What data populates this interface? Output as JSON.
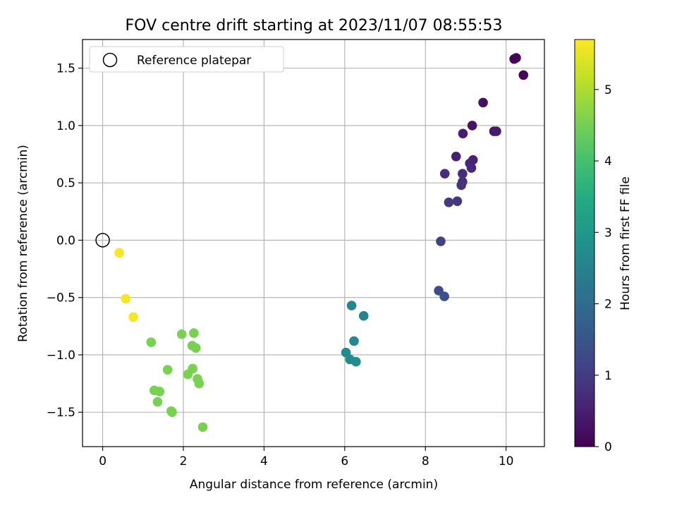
{
  "chart_data": {
    "type": "scatter",
    "title": "FOV centre drift starting at 2023/11/07 08:55:53",
    "xlabel": "Angular distance from reference (arcmin)",
    "ylabel": "Rotation from reference (arcmin)",
    "xlim": [
      -0.5,
      10.95
    ],
    "ylim": [
      -1.8,
      1.75
    ],
    "xticks": [
      0,
      2,
      4,
      6,
      8,
      10
    ],
    "xtick_labels": [
      "0",
      "2",
      "4",
      "6",
      "8",
      "10"
    ],
    "yticks": [
      -1.5,
      -1.0,
      -0.5,
      0.0,
      0.5,
      1.0,
      1.5
    ],
    "ytick_labels": [
      "−1.5",
      "−1.0",
      "−0.5",
      "0.0",
      "0.5",
      "1.0",
      "1.5"
    ],
    "grid": true,
    "legend": {
      "position": "top-left",
      "entries": [
        {
          "label": "Reference platepar",
          "marker": "open-circle",
          "color": "#000000"
        }
      ]
    },
    "reference_point": {
      "x": 0.0,
      "y": 0.0
    },
    "colorbar": {
      "label": "Hours from first FF file",
      "colormap": "viridis",
      "range": [
        0,
        5.7
      ],
      "ticks": [
        0,
        1,
        2,
        3,
        4,
        5
      ],
      "tick_labels": [
        "0",
        "1",
        "2",
        "3",
        "4",
        "5"
      ]
    },
    "points": [
      {
        "x": 10.2,
        "y": 1.58,
        "t": 0.02
      },
      {
        "x": 10.25,
        "y": 1.59,
        "t": 0.05
      },
      {
        "x": 10.43,
        "y": 1.44,
        "t": 0.08
      },
      {
        "x": 9.43,
        "y": 1.2,
        "t": 0.25
      },
      {
        "x": 9.16,
        "y": 1.0,
        "t": 0.3
      },
      {
        "x": 9.7,
        "y": 0.95,
        "t": 0.35
      },
      {
        "x": 9.76,
        "y": 0.95,
        "t": 0.4
      },
      {
        "x": 8.93,
        "y": 0.93,
        "t": 0.45
      },
      {
        "x": 8.76,
        "y": 0.73,
        "t": 0.5
      },
      {
        "x": 9.18,
        "y": 0.7,
        "t": 0.55
      },
      {
        "x": 9.1,
        "y": 0.67,
        "t": 0.6
      },
      {
        "x": 9.14,
        "y": 0.63,
        "t": 0.65
      },
      {
        "x": 8.92,
        "y": 0.58,
        "t": 0.7
      },
      {
        "x": 8.48,
        "y": 0.58,
        "t": 0.75
      },
      {
        "x": 8.92,
        "y": 0.51,
        "t": 0.8
      },
      {
        "x": 8.89,
        "y": 0.48,
        "t": 0.85
      },
      {
        "x": 8.79,
        "y": 0.34,
        "t": 0.9
      },
      {
        "x": 8.58,
        "y": 0.33,
        "t": 0.95
      },
      {
        "x": 8.38,
        "y": -0.01,
        "t": 1.1
      },
      {
        "x": 8.33,
        "y": -0.44,
        "t": 1.3
      },
      {
        "x": 8.47,
        "y": -0.49,
        "t": 1.4
      },
      {
        "x": 6.47,
        "y": -0.66,
        "t": 2.55
      },
      {
        "x": 6.17,
        "y": -0.57,
        "t": 2.6
      },
      {
        "x": 6.23,
        "y": -0.88,
        "t": 2.65
      },
      {
        "x": 6.03,
        "y": -0.98,
        "t": 2.7
      },
      {
        "x": 6.13,
        "y": -1.04,
        "t": 2.72
      },
      {
        "x": 6.28,
        "y": -1.06,
        "t": 2.75
      },
      {
        "x": 2.26,
        "y": -0.81,
        "t": 4.55
      },
      {
        "x": 1.96,
        "y": -0.82,
        "t": 4.55
      },
      {
        "x": 1.2,
        "y": -0.89,
        "t": 4.55
      },
      {
        "x": 2.22,
        "y": -0.92,
        "t": 4.55
      },
      {
        "x": 2.31,
        "y": -0.94,
        "t": 4.55
      },
      {
        "x": 1.61,
        "y": -1.13,
        "t": 4.55
      },
      {
        "x": 2.23,
        "y": -1.12,
        "t": 4.55
      },
      {
        "x": 2.11,
        "y": -1.17,
        "t": 4.55
      },
      {
        "x": 2.35,
        "y": -1.21,
        "t": 4.55
      },
      {
        "x": 2.39,
        "y": -1.25,
        "t": 4.55
      },
      {
        "x": 1.28,
        "y": -1.31,
        "t": 4.55
      },
      {
        "x": 1.41,
        "y": -1.32,
        "t": 4.55
      },
      {
        "x": 1.36,
        "y": -1.41,
        "t": 4.55
      },
      {
        "x": 1.7,
        "y": -1.49,
        "t": 4.55
      },
      {
        "x": 1.72,
        "y": -1.5,
        "t": 4.55
      },
      {
        "x": 2.48,
        "y": -1.63,
        "t": 4.55
      },
      {
        "x": 0.76,
        "y": -0.67,
        "t": 5.65
      },
      {
        "x": 0.57,
        "y": -0.51,
        "t": 5.65
      },
      {
        "x": 0.41,
        "y": -0.11,
        "t": 5.65
      }
    ]
  }
}
